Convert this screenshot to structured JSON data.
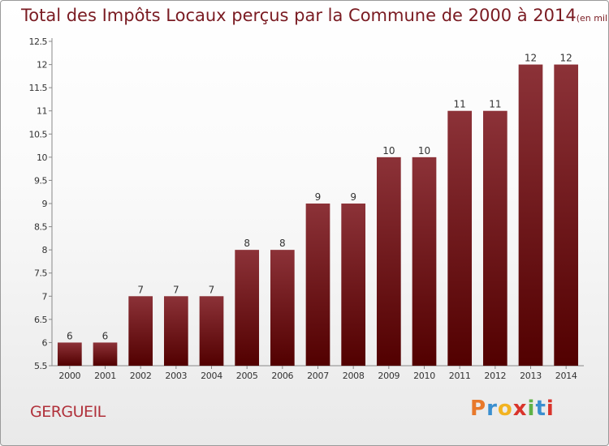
{
  "header": {
    "title": "Total des Impôts Locaux perçus par la Commune de 2000 à 2014",
    "unit": "(en milliers d'€)"
  },
  "footer": {
    "commune": "GERGUEIL",
    "logo_text": "Proxiti",
    "logo_colors": [
      "#e8792b",
      "#3a8fd0",
      "#f2b321",
      "#d9342b",
      "#5fb247",
      "#3a8fd0",
      "#d9342b"
    ]
  },
  "chart_data": {
    "type": "bar",
    "title": "Total des Impôts Locaux perçus par la Commune de 2000 à 2014",
    "unit": "(en milliers d'€)",
    "categories": [
      "2000",
      "2001",
      "2002",
      "2003",
      "2004",
      "2005",
      "2006",
      "2007",
      "2008",
      "2009",
      "2010",
      "2011",
      "2012",
      "2013",
      "2014"
    ],
    "values": [
      6,
      6,
      7,
      7,
      7,
      8,
      8,
      9,
      9,
      10,
      10,
      11,
      11,
      12,
      12
    ],
    "data_labels": [
      "6",
      "6",
      "7",
      "7",
      "7",
      "8",
      "8",
      "9",
      "9",
      "10",
      "10",
      "11",
      "11",
      "12",
      "12"
    ],
    "ylim": [
      5.5,
      12.5
    ],
    "yticks": [
      5.5,
      6,
      6.5,
      7,
      7.5,
      8,
      8.5,
      9,
      9.5,
      10,
      10.5,
      11,
      11.5,
      12,
      12.5
    ],
    "ytick_labels": [
      "5.5",
      "6",
      "6.5",
      "7",
      "7.5",
      "8",
      "8.5",
      "9",
      "9.5",
      "10",
      "10.5",
      "11",
      "11.5",
      "12",
      "12.5"
    ],
    "grid": false,
    "legend": "none",
    "bar_color": "#7a1a1e"
  }
}
